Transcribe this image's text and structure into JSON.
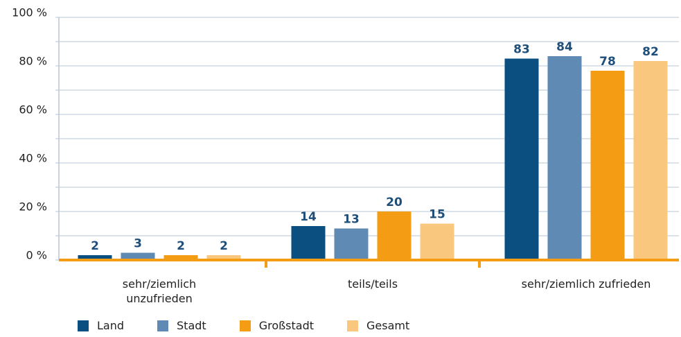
{
  "chart_data": {
    "type": "bar",
    "categories": [
      "sehr/ziemlich unzufrieden",
      "teils/teils",
      "sehr/ziemlich zufrieden"
    ],
    "series": [
      {
        "name": "Land",
        "color": "#0b4e80",
        "values": [
          2,
          14,
          83
        ]
      },
      {
        "name": "Stadt",
        "color": "#5f8ab3",
        "values": [
          3,
          13,
          84
        ]
      },
      {
        "name": "Großstadt",
        "color": "#f39c14",
        "values": [
          2,
          20,
          78
        ]
      },
      {
        "name": "Gesamt",
        "color": "#f9c77e",
        "values": [
          2,
          15,
          82
        ]
      }
    ],
    "ylim": [
      0,
      100
    ],
    "yticks": [
      {
        "value": 0,
        "label": "0 %"
      },
      {
        "value": 20,
        "label": "20 %"
      },
      {
        "value": 40,
        "label": "40 %"
      },
      {
        "value": 60,
        "label": "60 %"
      },
      {
        "value": 80,
        "label": "80 %"
      },
      {
        "value": 100,
        "label": "100 %"
      }
    ],
    "minor_yticks": [
      10,
      30,
      50,
      70,
      90
    ],
    "grid": true
  }
}
